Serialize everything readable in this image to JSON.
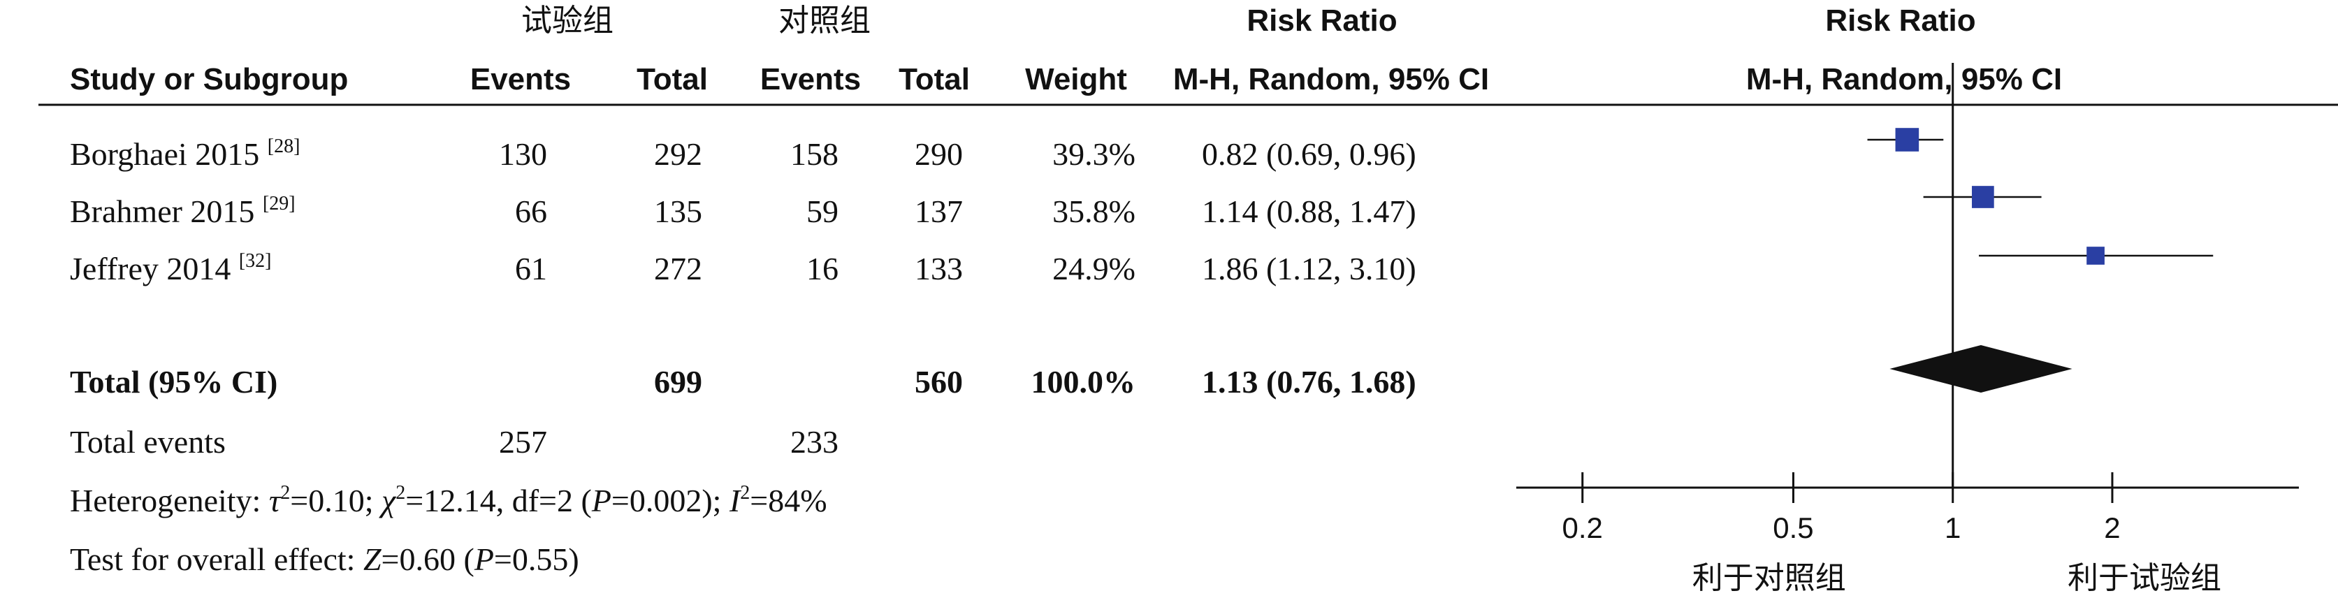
{
  "header": {
    "exp_group": "试验组",
    "ctrl_group": "对照组",
    "risk_ratio": "Risk Ratio",
    "risk_ratio_plot": "Risk Ratio",
    "study_col": "Study or Subgroup",
    "events_exp": "Events",
    "total_exp": "Total",
    "events_ctrl": "Events",
    "total_ctrl": "Total",
    "weight": "Weight",
    "method_col": "M-H, Random, 95% CI",
    "method_plot": "M-H, Random, 95% CI"
  },
  "studies": [
    {
      "name": "Borghaei 2015",
      "ref": "[28]",
      "events_exp": "130",
      "total_exp": "292",
      "events_ctrl": "158",
      "total_ctrl": "290",
      "weight": "39.3%",
      "ci_text": "0.82 (0.69, 0.96)"
    },
    {
      "name": "Brahmer 2015",
      "ref": "[29]",
      "events_exp": "66",
      "total_exp": "135",
      "events_ctrl": "59",
      "total_ctrl": "137",
      "weight": "35.8%",
      "ci_text": "1.14 (0.88, 1.47)"
    },
    {
      "name": "Jeffrey 2014",
      "ref": "[32]",
      "events_exp": "61",
      "total_exp": "272",
      "events_ctrl": "16",
      "total_ctrl": "133",
      "weight": "24.9%",
      "ci_text": "1.86 (1.12, 3.10)"
    }
  ],
  "total": {
    "label": "Total (95% CI)",
    "total_exp": "699",
    "total_ctrl": "560",
    "weight": "100.0%",
    "ci_text": "1.13 (0.76, 1.68)"
  },
  "total_events": {
    "label": "Total events",
    "exp": "257",
    "ctrl": "233"
  },
  "heterogeneity": {
    "label": "Heterogeneity: ",
    "tau_sym": "τ",
    "tau_val": "=0.10; ",
    "chi_sym": "χ",
    "chi_val": "=12.14, df=2 (",
    "p_sym": "P",
    "p_val": "=0.002); ",
    "i_sym": "I",
    "i_val": "=84%",
    "sq": "2"
  },
  "overall": {
    "label": "Test for overall effect: ",
    "z_sym": "Z",
    "z_val": "=0.60 (",
    "p_sym": "P",
    "p_val": "=0.55)"
  },
  "chart_data": {
    "type": "forest",
    "scale": "log",
    "xlim": [
      0.15,
      4.5
    ],
    "ticks": [
      {
        "value": 0.2,
        "label": "0.2"
      },
      {
        "value": 0.5,
        "label": "0.5"
      },
      {
        "value": 1,
        "label": "1"
      },
      {
        "value": 2,
        "label": "2"
      }
    ],
    "null_value": 1,
    "favours_left": "利于对照组",
    "favours_right": "利于试验组",
    "studies": [
      {
        "name": "Borghaei 2015",
        "rr": 0.82,
        "lo": 0.69,
        "hi": 0.96,
        "weight": 39.3
      },
      {
        "name": "Brahmer 2015",
        "rr": 1.14,
        "lo": 0.88,
        "hi": 1.47,
        "weight": 35.8
      },
      {
        "name": "Jeffrey 2014",
        "rr": 1.86,
        "lo": 1.12,
        "hi": 3.1,
        "weight": 24.9
      }
    ],
    "pooled": {
      "rr": 1.13,
      "lo": 0.76,
      "hi": 1.68
    },
    "colors": {
      "marker": "#2a3fa3",
      "diamond": "#111111",
      "line": "#111111"
    }
  }
}
